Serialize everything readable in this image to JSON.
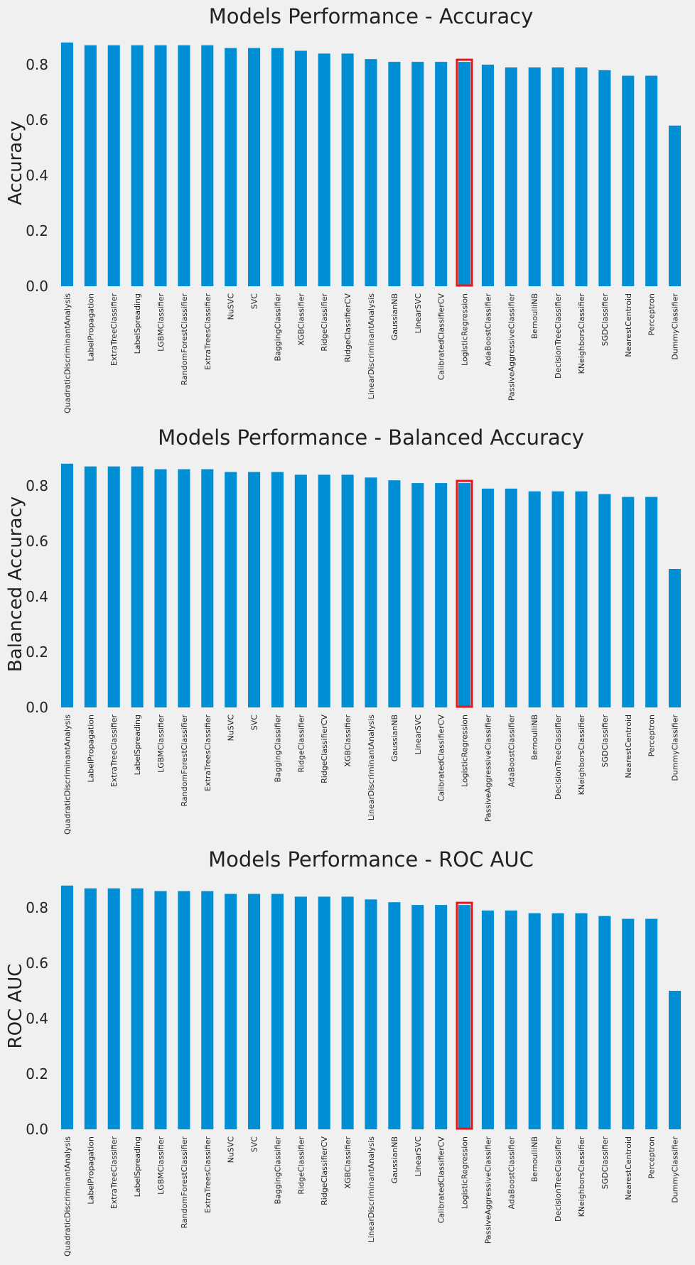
{
  "colors": {
    "bar": "#008fd5",
    "highlight": "#e5181d",
    "background": "#f0f0f0"
  },
  "highlight_label": "LogisticRegression",
  "chart_data": [
    {
      "type": "bar",
      "title": "Models Performance - Accuracy",
      "xlabel": "",
      "ylabel": "Accuracy",
      "ylim": [
        0,
        0.9
      ],
      "yticks": [
        "0.0",
        "0.2",
        "0.4",
        "0.6",
        "0.8"
      ],
      "grid": false,
      "categories": [
        "QuadraticDiscriminantAnalysis",
        "LabelPropagation",
        "ExtraTreeClassifier",
        "LabelSpreading",
        "LGBMClassifier",
        "RandomForestClassifier",
        "ExtraTreesClassifier",
        "NuSVC",
        "SVC",
        "BaggingClassifier",
        "XGBClassifier",
        "RidgeClassifier",
        "RidgeClassifierCV",
        "LinearDiscriminantAnalysis",
        "GaussianNB",
        "LinearSVC",
        "CalibratedClassifierCV",
        "LogisticRegression",
        "AdaBoostClassifier",
        "PassiveAggressiveClassifier",
        "BernoulliNB",
        "DecisionTreeClassifier",
        "KNeighborsClassifier",
        "SGDClassifier",
        "NearestCentroid",
        "Perceptron",
        "DummyClassifier"
      ],
      "values": [
        0.88,
        0.87,
        0.87,
        0.87,
        0.87,
        0.87,
        0.87,
        0.86,
        0.86,
        0.86,
        0.85,
        0.84,
        0.84,
        0.82,
        0.81,
        0.81,
        0.81,
        0.81,
        0.8,
        0.79,
        0.79,
        0.79,
        0.79,
        0.78,
        0.76,
        0.76,
        0.58
      ]
    },
    {
      "type": "bar",
      "title": "Models Performance - Balanced Accuracy",
      "xlabel": "",
      "ylabel": "Balanced Accuracy",
      "ylim": [
        0,
        0.9
      ],
      "yticks": [
        "0.0",
        "0.2",
        "0.4",
        "0.6",
        "0.8"
      ],
      "grid": false,
      "categories": [
        "QuadraticDiscriminantAnalysis",
        "LabelPropagation",
        "ExtraTreeClassifier",
        "LabelSpreading",
        "LGBMClassifier",
        "RandomForestClassifier",
        "ExtraTreesClassifier",
        "NuSVC",
        "SVC",
        "BaggingClassifier",
        "RidgeClassifier",
        "RidgeClassifierCV",
        "XGBClassifier",
        "LinearDiscriminantAnalysis",
        "GaussianNB",
        "LinearSVC",
        "CalibratedClassifierCV",
        "LogisticRegression",
        "PassiveAggressiveClassifier",
        "AdaBoostClassifier",
        "BernoulliNB",
        "DecisionTreeClassifier",
        "KNeighborsClassifier",
        "SGDClassifier",
        "NearestCentroid",
        "Perceptron",
        "DummyClassifier"
      ],
      "values": [
        0.88,
        0.87,
        0.87,
        0.87,
        0.86,
        0.86,
        0.86,
        0.85,
        0.85,
        0.85,
        0.84,
        0.84,
        0.84,
        0.83,
        0.82,
        0.81,
        0.81,
        0.81,
        0.79,
        0.79,
        0.78,
        0.78,
        0.78,
        0.77,
        0.76,
        0.76,
        0.5
      ]
    },
    {
      "type": "bar",
      "title": "Models Performance - ROC AUC",
      "xlabel": "",
      "ylabel": "ROC AUC",
      "ylim": [
        0,
        0.9
      ],
      "yticks": [
        "0.0",
        "0.2",
        "0.4",
        "0.6",
        "0.8"
      ],
      "grid": false,
      "categories": [
        "QuadraticDiscriminantAnalysis",
        "LabelPropagation",
        "ExtraTreeClassifier",
        "LabelSpreading",
        "LGBMClassifier",
        "RandomForestClassifier",
        "ExtraTreesClassifier",
        "NuSVC",
        "SVC",
        "BaggingClassifier",
        "RidgeClassifier",
        "RidgeClassifierCV",
        "XGBClassifier",
        "LinearDiscriminantAnalysis",
        "GaussianNB",
        "LinearSVC",
        "CalibratedClassifierCV",
        "LogisticRegression",
        "PassiveAggressiveClassifier",
        "AdaBoostClassifier",
        "BernoulliNB",
        "DecisionTreeClassifier",
        "KNeighborsClassifier",
        "SGDClassifier",
        "NearestCentroid",
        "Perceptron",
        "DummyClassifier"
      ],
      "values": [
        0.88,
        0.87,
        0.87,
        0.87,
        0.86,
        0.86,
        0.86,
        0.85,
        0.85,
        0.85,
        0.84,
        0.84,
        0.84,
        0.83,
        0.82,
        0.81,
        0.81,
        0.81,
        0.79,
        0.79,
        0.78,
        0.78,
        0.78,
        0.77,
        0.76,
        0.76,
        0.5
      ]
    }
  ]
}
